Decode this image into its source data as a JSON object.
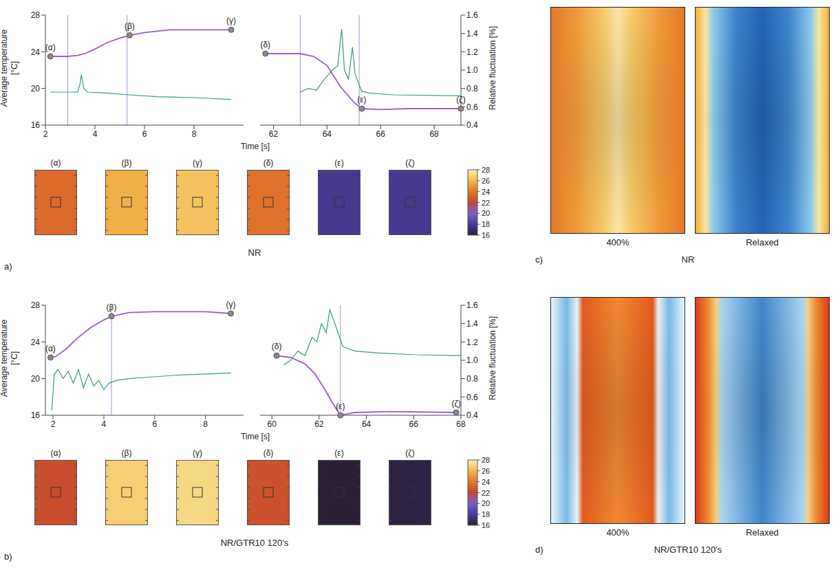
{
  "chart_data": [
    {
      "type": "line",
      "panel": "a)",
      "title": "NR",
      "x_label": "Time [s]",
      "y_label": "Average temperature [°C]",
      "y2_label": "Relative fluctuation [%]",
      "ylim": [
        16,
        28
      ],
      "yticks": [
        16,
        20,
        24,
        28
      ],
      "y2lim": [
        0.4,
        1.6
      ],
      "y2ticks": [
        0.4,
        0.6,
        0.8,
        {
          "value": 1,
          "label": "1.0"
        },
        1.2,
        1.4,
        1.6
      ],
      "colorbar": {
        "range": [
          16,
          28
        ],
        "ticks": [
          16,
          18,
          20,
          22,
          24,
          26,
          28
        ]
      },
      "segments": [
        {
          "xlim": [
            2,
            10
          ],
          "xticks": [
            2,
            4,
            6,
            8
          ],
          "vlines": [
            2.9,
            5.3
          ],
          "series": [
            {
              "color": "#9a5cc6",
              "x": [
                2.2,
                2.9,
                3.3,
                3.6,
                4.0,
                4.5,
                5.0,
                5.4,
                6.0,
                7.0,
                8.0,
                9.5
              ],
              "values": [
                23.5,
                23.5,
                23.6,
                23.8,
                24.3,
                25.0,
                25.5,
                25.8,
                26.1,
                26.4,
                26.4,
                26.4
              ]
            },
            {
              "color": "#3a9c78",
              "axis": "y2",
              "x": [
                2.2,
                3.3,
                3.4,
                3.45,
                3.55,
                3.7,
                4.5,
                5.4,
                6.5,
                8.0,
                9.5
              ],
              "values": [
                0.76,
                0.76,
                0.85,
                0.95,
                0.8,
                0.76,
                0.75,
                0.73,
                0.71,
                0.7,
                0.68
              ]
            }
          ],
          "points": [
            {
              "label": "(α)",
              "x": 2.2,
              "y": 23.5
            },
            {
              "label": "(β)",
              "x": 5.4,
              "y": 25.8
            },
            {
              "label": "(γ)",
              "x": 9.5,
              "y": 26.4
            }
          ]
        },
        {
          "xlim": [
            61.5,
            69
          ],
          "xticks": [
            62,
            64,
            66,
            68
          ],
          "vlines": [
            63,
            65.2
          ],
          "series": [
            {
              "color": "#9a5cc6",
              "x": [
                61.7,
                63.0,
                63.5,
                64.0,
                64.5,
                65.0,
                65.3,
                66,
                67,
                69
              ],
              "values": [
                23.8,
                23.8,
                23.5,
                22.5,
                20.2,
                18.5,
                17.8,
                17.7,
                17.8,
                17.8
              ]
            },
            {
              "color": "#3a9c78",
              "axis": "y2",
              "x": [
                63.0,
                63.3,
                63.6,
                63.9,
                64.2,
                64.4,
                64.55,
                64.65,
                64.8,
                64.95,
                65.05,
                65.3,
                65.6,
                66.5,
                69
              ],
              "values": [
                0.76,
                0.8,
                0.78,
                0.9,
                1.0,
                1.05,
                1.45,
                1.0,
                0.9,
                1.25,
                0.95,
                0.77,
                0.75,
                0.73,
                0.72
              ]
            }
          ],
          "points": [
            {
              "label": "(δ)",
              "x": 61.7,
              "y": 23.8
            },
            {
              "label": "(ε)",
              "x": 65.3,
              "y": 17.8
            },
            {
              "label": "(ζ)",
              "x": 69,
              "y": 17.8
            }
          ]
        }
      ]
    },
    {
      "type": "line",
      "panel": "b)",
      "title": "NR/GTR10 120's",
      "x_label": "Time [s]",
      "y_label": "Average temperature [°C]",
      "y2_label": "Relative fluctuation [%]",
      "ylim": [
        16,
        28
      ],
      "yticks": [
        16,
        20,
        24,
        28
      ],
      "y2lim": [
        0.4,
        1.6
      ],
      "y2ticks": [
        0.4,
        0.6,
        0.8,
        {
          "value": 1,
          "label": "1.0"
        },
        1.2,
        1.4,
        1.6
      ],
      "colorbar": {
        "range": [
          16,
          28
        ],
        "ticks": [
          16,
          18,
          20,
          22,
          24,
          26,
          28
        ]
      },
      "segments": [
        {
          "xlim": [
            1.7,
            9.5
          ],
          "xticks": [
            2,
            4,
            6,
            8
          ],
          "vlines": [
            4.3
          ],
          "series": [
            {
              "color": "#9a5cc6",
              "x": [
                1.9,
                2.1,
                2.5,
                3.0,
                3.5,
                4.0,
                4.3,
                5.0,
                6,
                8,
                9.0
              ],
              "values": [
                22.3,
                22.4,
                23.2,
                24.5,
                25.6,
                26.4,
                26.8,
                27.2,
                27.3,
                27.3,
                27.1
              ]
            },
            {
              "color": "#3a9c78",
              "axis": "y2",
              "x": [
                1.95,
                2.05,
                2.2,
                2.4,
                2.6,
                2.8,
                3.0,
                3.2,
                3.4,
                3.6,
                3.8,
                4.0,
                4.2,
                4.5,
                5,
                6,
                7,
                9
              ],
              "values": [
                0.45,
                0.85,
                0.9,
                0.8,
                0.88,
                0.75,
                0.9,
                0.7,
                0.85,
                0.72,
                0.78,
                0.68,
                0.75,
                0.78,
                0.8,
                0.82,
                0.84,
                0.86
              ]
            }
          ],
          "points": [
            {
              "label": "(α)",
              "x": 1.9,
              "y": 22.3
            },
            {
              "label": "(β)",
              "x": 4.3,
              "y": 26.8
            },
            {
              "label": "(γ)",
              "x": 9,
              "y": 27.1
            }
          ]
        },
        {
          "xlim": [
            59.5,
            68
          ],
          "xticks": [
            60,
            62,
            64,
            66,
            68
          ],
          "vlines": [
            62.9
          ],
          "series": [
            {
              "color": "#9a5cc6",
              "x": [
                60.2,
                60.8,
                61.4,
                61.8,
                62.2,
                62.6,
                62.9,
                63.5,
                65,
                67.8
              ],
              "values": [
                22.5,
                22.3,
                21.6,
                20.6,
                19.0,
                17.2,
                16.0,
                16.3,
                16.4,
                16.3
              ]
            },
            {
              "color": "#3a9c78",
              "axis": "y2",
              "x": [
                60.5,
                60.8,
                61.1,
                61.4,
                61.7,
                61.9,
                62.1,
                62.3,
                62.45,
                62.6,
                62.8,
                63.0,
                63.5,
                64.5,
                66,
                68
              ],
              "values": [
                0.95,
                1.0,
                1.1,
                1.05,
                1.25,
                1.2,
                1.4,
                1.3,
                1.55,
                1.45,
                1.3,
                1.15,
                1.1,
                1.08,
                1.06,
                1.05
              ]
            }
          ],
          "points": [
            {
              "label": "(δ)",
              "x": 60.2,
              "y": 22.5
            },
            {
              "label": "(ε)",
              "x": 62.9,
              "y": 16.0
            },
            {
              "label": "(ζ)",
              "x": 67.8,
              "y": 16.3
            }
          ]
        }
      ]
    }
  ],
  "images": [
    {
      "panel": "c)",
      "title": "NR",
      "labels": [
        "400%",
        "Relaxed"
      ]
    },
    {
      "panel": "d)",
      "title": "NR/GTR10 120's",
      "labels": [
        "400%",
        "Relaxed"
      ]
    }
  ]
}
